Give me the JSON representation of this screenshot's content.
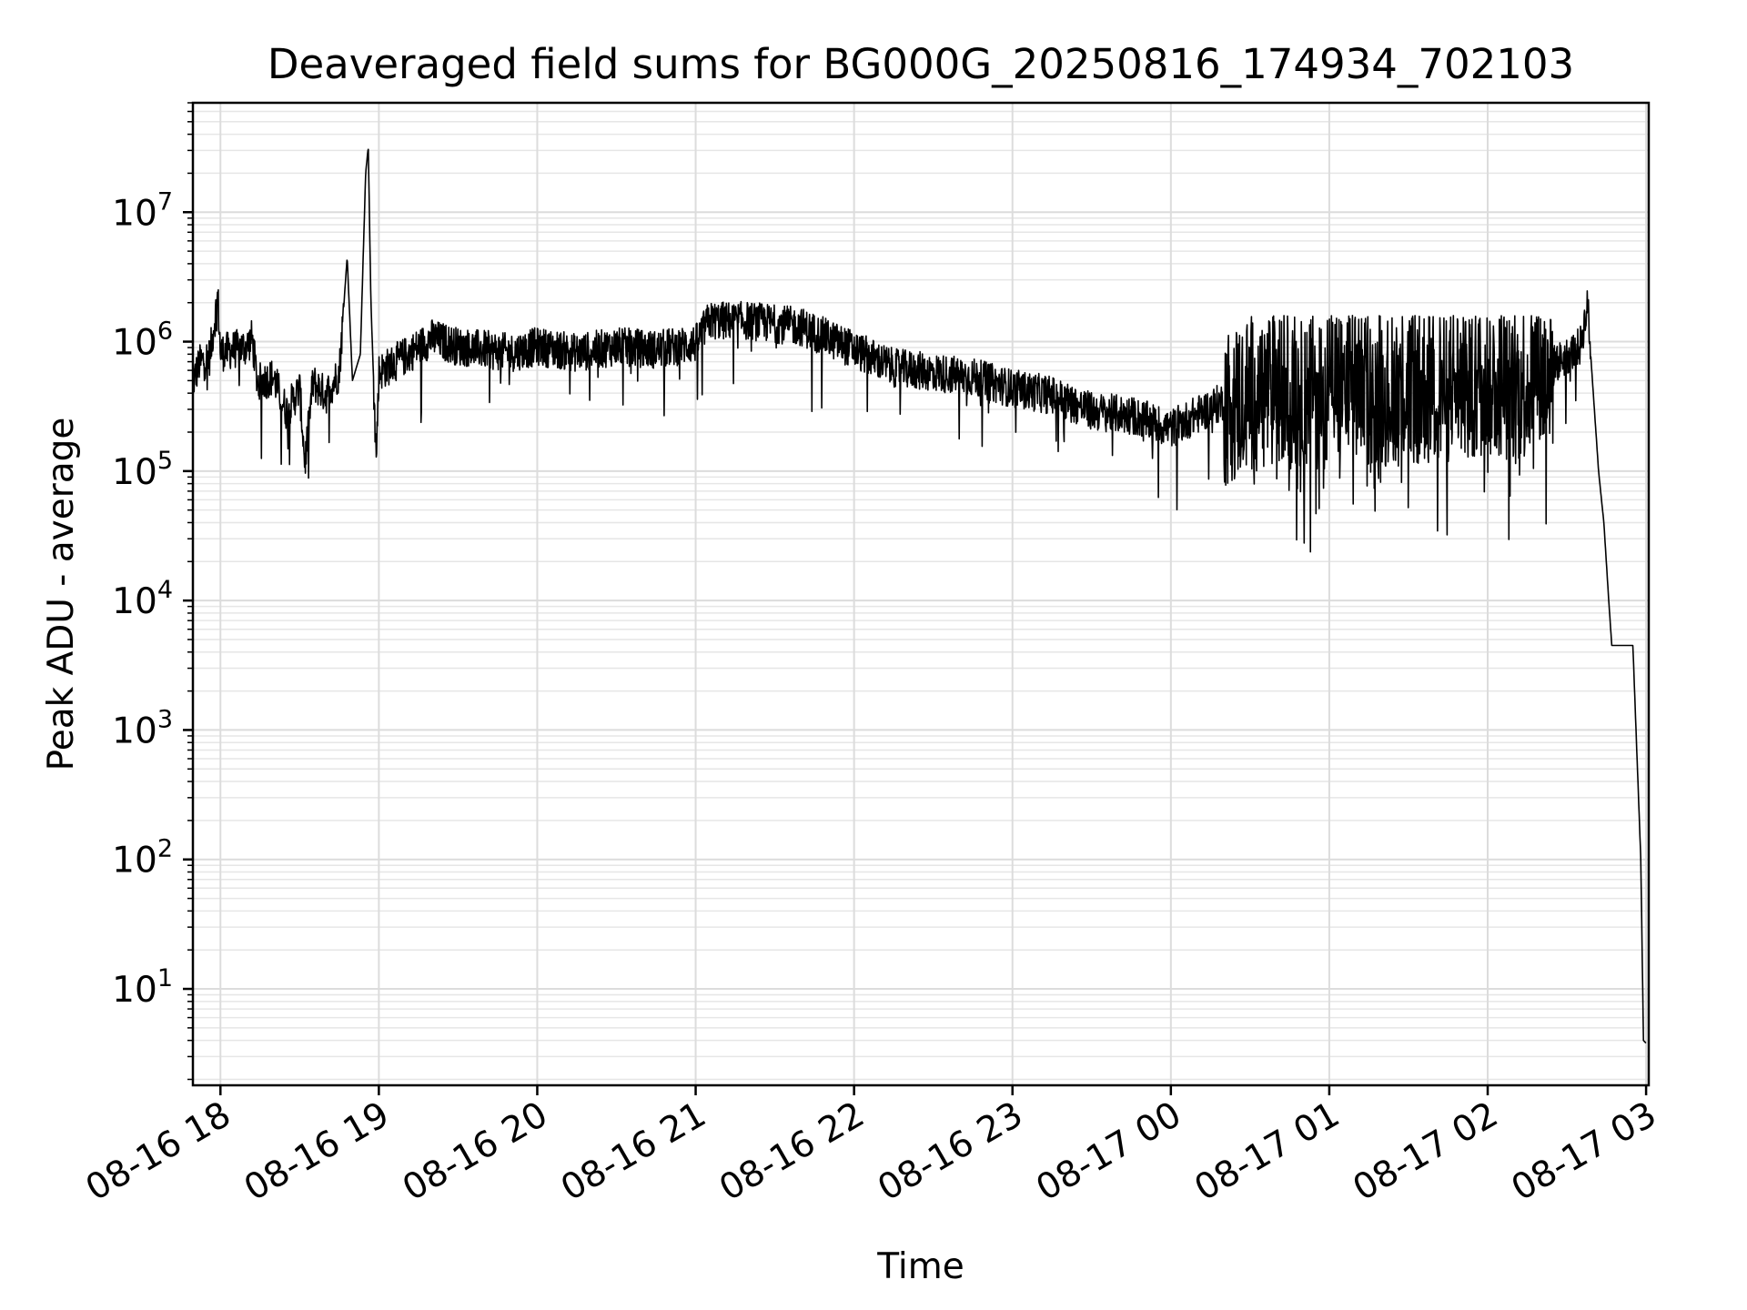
{
  "chart_data": {
    "type": "line",
    "title": "Deaveraged field sums for BG000G_20250816_174934_702103",
    "xlabel": "Time",
    "ylabel": "Peak ADU - average",
    "xscale": "time",
    "yscale": "log",
    "xlim": [
      "2025-08-16T17:49:34",
      "2025-08-17T03:01:00"
    ],
    "ylim": [
      1.8,
      70000000
    ],
    "grid": "both",
    "x_tick_labels": [
      "08-16 18",
      "08-16 19",
      "08-16 20",
      "08-16 21",
      "08-16 22",
      "08-16 23",
      "08-17 00",
      "08-17 01",
      "08-17 02",
      "08-17 03"
    ],
    "y_tick_labels": [
      {
        "base": "10",
        "exp": "1"
      },
      {
        "base": "10",
        "exp": "2"
      },
      {
        "base": "10",
        "exp": "3"
      },
      {
        "base": "10",
        "exp": "4"
      },
      {
        "base": "10",
        "exp": "5"
      },
      {
        "base": "10",
        "exp": "6"
      },
      {
        "base": "10",
        "exp": "7"
      }
    ],
    "color": "#000000",
    "series": [
      {
        "points": [
          [
            "2025-08-16T17:49:34",
            500000
          ],
          [
            "2025-08-16T17:52",
            700000
          ],
          [
            "2025-08-16T17:56",
            800000
          ],
          [
            "2025-08-16T17:59",
            2300000
          ],
          [
            "2025-08-16T18:00",
            850000
          ],
          [
            "2025-08-16T18:05",
            900000
          ],
          [
            "2025-08-16T18:10",
            950000
          ],
          [
            "2025-08-16T18:12",
            1100000
          ],
          [
            "2025-08-16T18:14",
            500000
          ],
          [
            "2025-08-16T18:20",
            550000
          ],
          [
            "2025-08-16T18:25",
            300000
          ],
          [
            "2025-08-16T18:30",
            450000
          ],
          [
            "2025-08-16T18:32",
            120000
          ],
          [
            "2025-08-16T18:35",
            500000
          ],
          [
            "2025-08-16T18:40",
            400000
          ],
          [
            "2025-08-16T18:45",
            600000
          ],
          [
            "2025-08-16T18:48",
            4500000
          ],
          [
            "2025-08-16T18:50",
            500000
          ],
          [
            "2025-08-16T18:53",
            800000
          ],
          [
            "2025-08-16T18:55",
            20000000
          ],
          [
            "2025-08-16T18:56",
            32000000
          ],
          [
            "2025-08-16T18:57",
            2000000
          ],
          [
            "2025-08-16T18:59",
            130000
          ],
          [
            "2025-08-16T19:00",
            600000
          ],
          [
            "2025-08-16T19:10",
            800000
          ],
          [
            "2025-08-16T19:20",
            1100000
          ],
          [
            "2025-08-16T19:30",
            950000
          ],
          [
            "2025-08-16T19:40",
            900000
          ],
          [
            "2025-08-16T19:50",
            850000
          ],
          [
            "2025-08-16T20:00",
            950000
          ],
          [
            "2025-08-16T20:15",
            850000
          ],
          [
            "2025-08-16T20:30",
            950000
          ],
          [
            "2025-08-16T20:45",
            900000
          ],
          [
            "2025-08-16T21:00",
            1000000
          ],
          [
            "2025-08-16T21:05",
            1500000
          ],
          [
            "2025-08-16T21:20",
            1500000
          ],
          [
            "2025-08-16T21:40",
            1350000
          ],
          [
            "2025-08-16T22:00",
            900000
          ],
          [
            "2025-08-16T22:15",
            650000
          ],
          [
            "2025-08-16T22:30",
            600000
          ],
          [
            "2025-08-16T22:45",
            550000
          ],
          [
            "2025-08-16T23:00",
            450000
          ],
          [
            "2025-08-16T23:15",
            400000
          ],
          [
            "2025-08-16T23:30",
            300000
          ],
          [
            "2025-08-16T23:45",
            280000
          ],
          [
            "2025-08-17T00:00",
            220000
          ],
          [
            "2025-08-17T00:15",
            320000
          ],
          [
            "2025-08-17T00:30",
            450000
          ],
          [
            "2025-08-17T00:45",
            500000
          ],
          [
            "2025-08-17T01:00",
            500000
          ],
          [
            "2025-08-17T01:15",
            520000
          ],
          [
            "2025-08-17T01:30",
            520000
          ],
          [
            "2025-08-17T01:45",
            550000
          ],
          [
            "2025-08-17T02:00",
            600000
          ],
          [
            "2025-08-17T02:10",
            550000
          ],
          [
            "2025-08-17T02:20",
            600000
          ],
          [
            "2025-08-17T02:30",
            800000
          ],
          [
            "2025-08-17T02:35",
            950000
          ],
          [
            "2025-08-17T02:38",
            2000000
          ],
          [
            "2025-08-17T02:39",
            800000
          ],
          [
            "2025-08-17T02:42",
            100000
          ],
          [
            "2025-08-17T02:44",
            40000
          ],
          [
            "2025-08-17T02:46",
            9000
          ],
          [
            "2025-08-17T02:47",
            4500
          ],
          [
            "2025-08-17T02:55",
            4500
          ],
          [
            "2025-08-17T02:58",
            100
          ],
          [
            "2025-08-17T02:59",
            4
          ],
          [
            "2025-08-17T03:00",
            3.8
          ]
        ]
      }
    ]
  }
}
